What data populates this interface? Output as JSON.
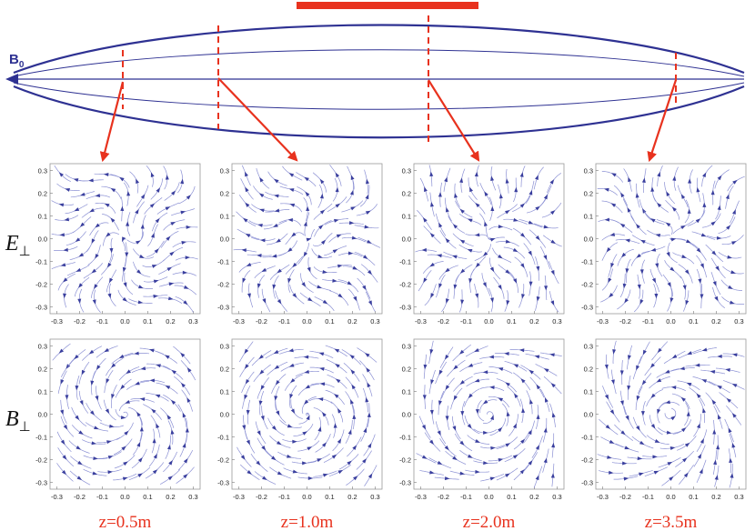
{
  "top": {
    "b0_label": "B",
    "b0_subscript": "0"
  },
  "rows": [
    {
      "label": "E",
      "subscript": "⊥"
    },
    {
      "label": "B",
      "subscript": "⊥"
    }
  ],
  "columns": [
    "z=0.5m",
    "z=1.0m",
    "z=2.0m",
    "z=3.5m"
  ],
  "axes": {
    "lim": [
      -0.33,
      0.33
    ],
    "ticks": [
      -0.3,
      -0.2,
      -0.1,
      {
        "value": 0,
        "label": "0.0"
      },
      0.1,
      0.2,
      0.3
    ]
  }
}
